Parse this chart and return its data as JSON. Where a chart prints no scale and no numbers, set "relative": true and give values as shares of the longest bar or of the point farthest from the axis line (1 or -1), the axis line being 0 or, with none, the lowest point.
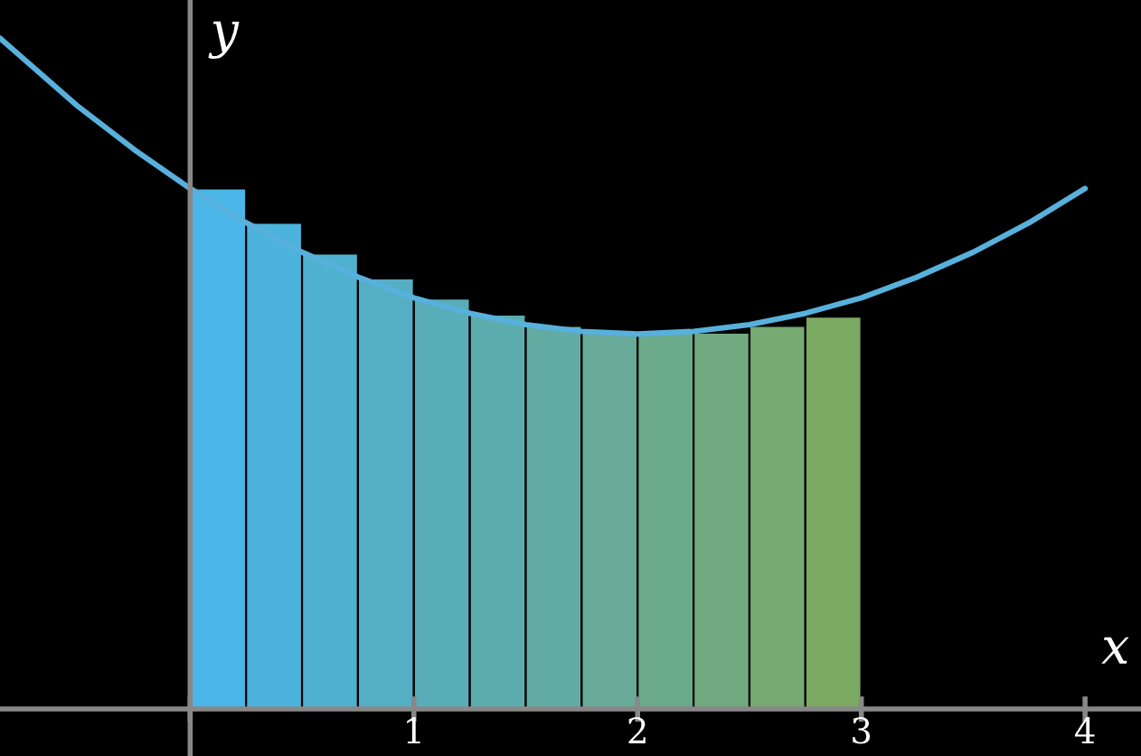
{
  "chart_data": {
    "type": "histogram",
    "relative": true,
    "xlabel": "x",
    "ylabel": "y",
    "bins": [
      0,
      0.25,
      0.5,
      0.75,
      1,
      1.25,
      1.5,
      1.75,
      2,
      2.25,
      2.5,
      2.75,
      3
    ],
    "values": [
      0.776,
      0.725,
      0.679,
      0.642,
      0.612,
      0.588,
      0.571,
      0.561,
      0.561,
      0.561,
      0.571,
      0.585
    ],
    "colors": [
      "#4ab6e8",
      "#4cb3dc",
      "#50b0d0",
      "#54afc4",
      "#58adb8",
      "#5cacae",
      "#62aba2",
      "#67ab98",
      "#6caa8c",
      "#71aa80",
      "#76aa72",
      "#7ba962"
    ],
    "series": [
      {
        "type": "line",
        "color": "#58b0dc",
        "x": [
          -0.85,
          -0.5,
          -0.25,
          0,
          0.25,
          0.5,
          0.75,
          1,
          1.25,
          1.5,
          1.75,
          2,
          2.25,
          2.5,
          2.75,
          3,
          3.25,
          3.5,
          3.75,
          4
        ],
        "values": [
          1.0,
          0.898,
          0.834,
          0.776,
          0.725,
          0.681,
          0.644,
          0.613,
          0.59,
          0.573,
          0.563,
          0.559,
          0.563,
          0.573,
          0.59,
          0.613,
          0.644,
          0.681,
          0.725,
          0.776
        ]
      }
    ],
    "xlim": [
      -0.85,
      4.25
    ],
    "xticks": [
      {
        "value": 0,
        "label": null
      },
      1,
      2,
      3,
      4
    ]
  }
}
